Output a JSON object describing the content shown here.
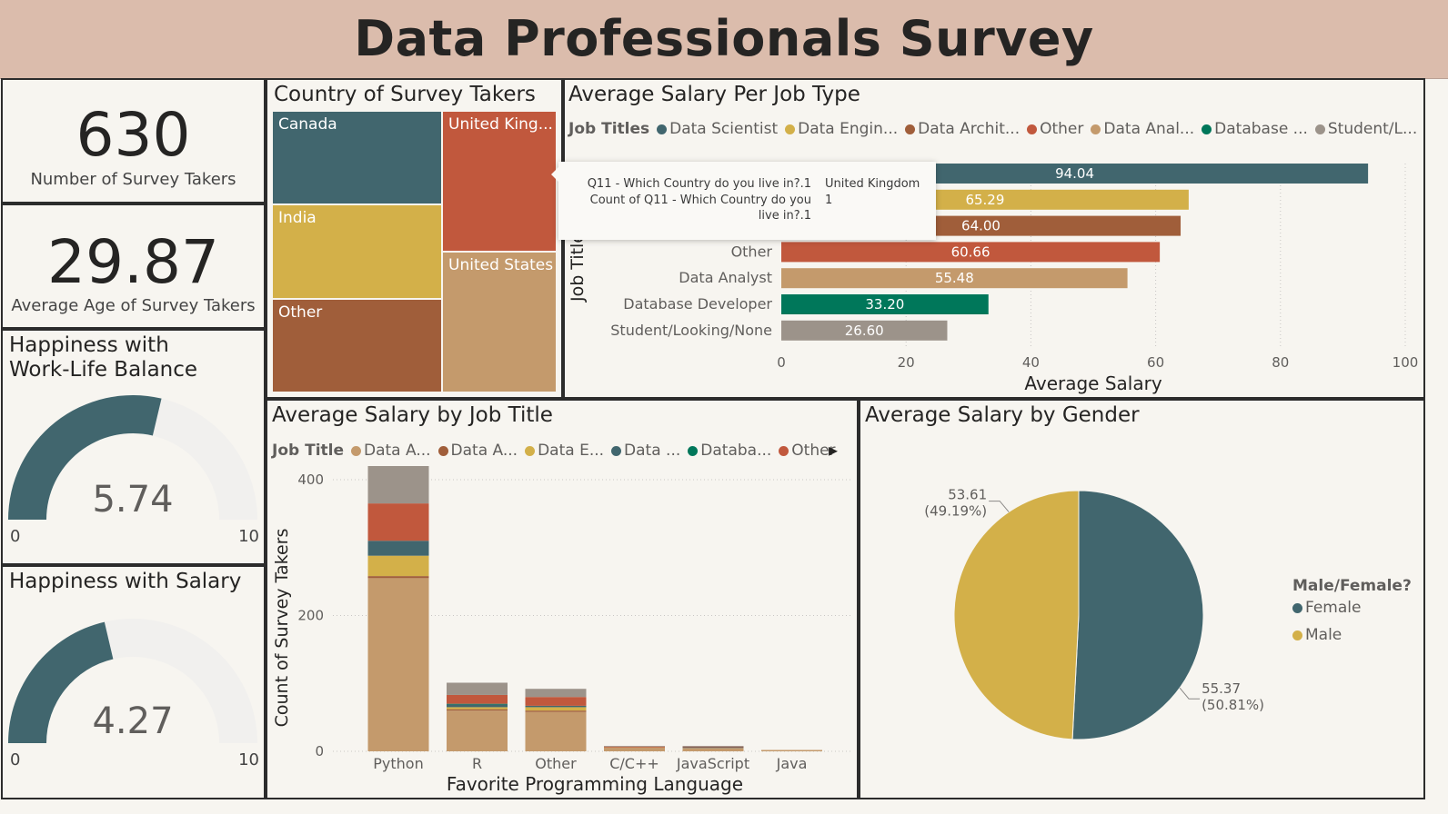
{
  "header": {
    "title": "Data Professionals Survey"
  },
  "cards": {
    "survey_takers": {
      "value": "630",
      "label": "Number of Survey Takers"
    },
    "avg_age": {
      "value": "29.87",
      "label": "Average Age of Survey Takers"
    }
  },
  "gauges": [
    {
      "title": "Happiness with Work-Life Balance",
      "title_line1": "Happiness with",
      "title_line2": "Work-Life Balance",
      "value": 5.74,
      "value_label": "5.74",
      "min": "0",
      "max": "10",
      "fill_color": "#41666e",
      "track_color": "#f1f0ee"
    },
    {
      "title": "Happiness with Salary",
      "value": 4.27,
      "value_label": "4.27",
      "min": "0",
      "max": "10",
      "fill_color": "#41666e",
      "track_color": "#f1f0ee"
    }
  ],
  "country_treemap": {
    "title": "Country of Survey Takers",
    "cells": [
      {
        "label": "Canada",
        "color": "#41666e"
      },
      {
        "label": "United King...",
        "color": "#c1583d"
      },
      {
        "label": "India",
        "color": "#d3b049"
      },
      {
        "label": "United States",
        "color": "#c49a6c"
      },
      {
        "label": "Other",
        "color": "#a05e3a"
      }
    ]
  },
  "tooltip": {
    "rows": [
      {
        "key": "Q11 - Which Country do you live in?.1",
        "value": "United Kingdom"
      },
      {
        "key_line1": "Count of Q11 - Which Country do you",
        "key_line2": "live in?.1",
        "value": "1"
      }
    ]
  },
  "salary_job_type": {
    "title": "Average Salary Per Job Type",
    "legend_title": "Job Titles",
    "legend": [
      {
        "label": "Data Scientist",
        "color": "#41666e"
      },
      {
        "label": "Data Engin...",
        "color": "#d3b049"
      },
      {
        "label": "Data Archit...",
        "color": "#a05e3a"
      },
      {
        "label": "Other",
        "color": "#c1583d"
      },
      {
        "label": "Data Anal...",
        "color": "#c49a6c"
      },
      {
        "label": "Database ...",
        "color": "#00775a"
      },
      {
        "label": "Student/L...",
        "color": "#9c938a"
      }
    ],
    "y_axis_label": "Job Title",
    "x_axis_label": "Average Salary",
    "visible_rows": [
      {
        "label": "Other",
        "value_label": "60.66"
      },
      {
        "label": "Data Analyst",
        "value_label": "55.48"
      },
      {
        "label": "Database Developer",
        "value_label": "33.20"
      },
      {
        "label": "Student/Looking/None",
        "value_label": "26.60"
      }
    ]
  },
  "salary_job_title": {
    "title": "Average Salary by Job Title",
    "legend_title": "Job Title",
    "legend": [
      {
        "label": "Data A...",
        "color": "#c49a6c"
      },
      {
        "label": "Data A...",
        "color": "#a05e3a"
      },
      {
        "label": "Data E...",
        "color": "#d3b049"
      },
      {
        "label": "Data ...",
        "color": "#41666e"
      },
      {
        "label": "Databa...",
        "color": "#00775a"
      },
      {
        "label": "Other",
        "color": "#c1583d"
      }
    ],
    "next_arrow": "▸"
  },
  "gender": {
    "title": "Average Salary by Gender",
    "legend_title": "Male/Female?",
    "legend": [
      {
        "label": "Female",
        "color": "#41666e"
      },
      {
        "label": "Male",
        "color": "#d3b049"
      }
    ]
  },
  "chart_data": [
    {
      "type": "bar",
      "orientation": "horizontal",
      "title": "Average Salary Per Job Type",
      "xlabel": "Average Salary",
      "ylabel": "Job Title",
      "xlim": [
        0,
        100
      ],
      "xticks": [
        "0",
        "20",
        "40",
        "60",
        "80",
        "100"
      ],
      "categories": [
        "Data Scientist",
        "Data Engineer",
        "Data Architect",
        "Other",
        "Data Analyst",
        "Database Developer",
        "Student/Looking/None"
      ],
      "values": [
        94.04,
        65.29,
        64.0,
        60.66,
        55.48,
        33.2,
        26.6
      ],
      "labels": [
        "94.04",
        "65.29",
        "64.00",
        "60.66",
        "55.48",
        "33.20",
        "26.60"
      ],
      "colors": [
        "#41666e",
        "#d3b049",
        "#a05e3a",
        "#c1583d",
        "#c49a6c",
        "#00775a",
        "#9c938a"
      ],
      "grid": true
    },
    {
      "type": "bar",
      "stacked": true,
      "title": "Average Salary by Job Title",
      "xlabel": "Favorite Programming Language",
      "ylabel": "Count of Survey Takers",
      "ylim": [
        0,
        420
      ],
      "yticks": [
        "0",
        "200",
        "400"
      ],
      "categories": [
        "Python",
        "R",
        "Other",
        "C/C++",
        "JavaScript",
        "Java"
      ],
      "series": [
        {
          "color": "#c49a6c",
          "values": [
            255,
            60,
            58,
            6,
            5,
            2
          ]
        },
        {
          "color": "#a05e3a",
          "values": [
            3,
            2,
            2,
            0,
            0,
            0
          ]
        },
        {
          "color": "#d3b049",
          "values": [
            30,
            3,
            5,
            0,
            0,
            0
          ]
        },
        {
          "color": "#41666e",
          "values": [
            22,
            4,
            2,
            0,
            1,
            0
          ]
        },
        {
          "color": "#00775a",
          "values": [
            0,
            1,
            0,
            0,
            0,
            0
          ]
        },
        {
          "color": "#c1583d",
          "values": [
            55,
            13,
            13,
            1,
            1,
            0
          ]
        },
        {
          "color": "#9c938a",
          "values": [
            55,
            18,
            12,
            1,
            1,
            0
          ]
        }
      ],
      "grid": true
    },
    {
      "type": "pie",
      "title": "Average Salary by Gender",
      "categories": [
        "Female",
        "Male"
      ],
      "values": [
        55.37,
        53.61
      ],
      "labels": [
        {
          "line1": "55.37",
          "line2": "(50.81%)"
        },
        {
          "line1": "53.61",
          "line2": "(49.19%)"
        }
      ],
      "colors": [
        "#41666e",
        "#d3b049"
      ],
      "legend": "right"
    }
  ]
}
